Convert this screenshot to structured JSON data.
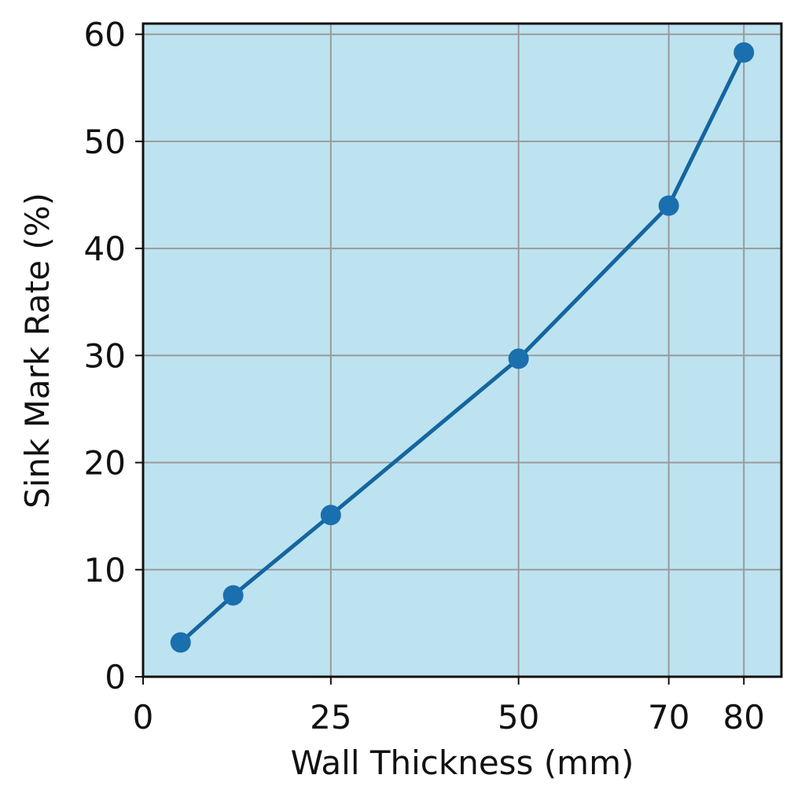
{
  "chart_data": {
    "type": "line",
    "title": "",
    "xlabel": "Wall Thickness (mm)",
    "ylabel": "Sink Mark Rate (%)",
    "x": [
      5,
      12,
      25,
      50,
      70,
      80
    ],
    "series": [
      {
        "name": "",
        "values": [
          3.2,
          7.6,
          15.1,
          29.7,
          44.0,
          58.3
        ]
      }
    ],
    "xlim": [
      0,
      85
    ],
    "ylim": [
      0,
      61
    ],
    "xticks": [
      0,
      25,
      50,
      70,
      80
    ],
    "xtick_labels": [
      "0",
      "25",
      "50",
      "70",
      "80"
    ],
    "yticks": [
      0,
      10,
      20,
      30,
      40,
      50,
      60
    ],
    "ytick_labels": [
      "0",
      "10",
      "20",
      "30",
      "40",
      "50",
      "60"
    ],
    "grid": true,
    "legend": "none",
    "colors": {
      "plot_background": "#bde3f0",
      "line": "#1565a0",
      "marker": "#1a6fae",
      "grid": "#9a9a9a",
      "axis": "#111111"
    }
  }
}
